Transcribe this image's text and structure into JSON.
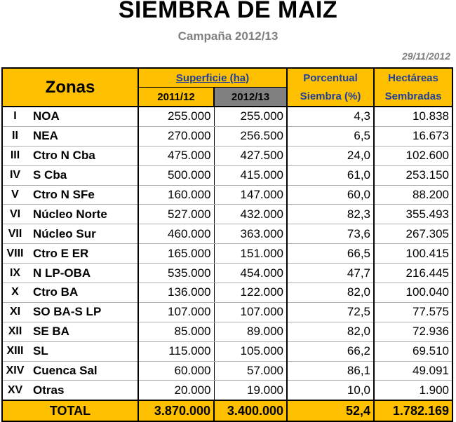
{
  "title": "SIEMBRA DE MAIZ",
  "subtitle": "Campaña 2012/13",
  "date": "29/11/2012",
  "header": {
    "zonas": "Zonas",
    "superficie": "Superficie (ha)",
    "year1": "2011/12",
    "year2": "2012/13",
    "porcentual_l1": "Porcentual",
    "porcentual_l2": "Siembra (%)",
    "hectareas_l1": "Hectáreas",
    "hectareas_l2": "Sembradas"
  },
  "rows": [
    {
      "num": "I",
      "zona": "NOA",
      "sup_2011": "255.000",
      "sup_2012": "255.000",
      "pct": "4,3",
      "ha": "10.838"
    },
    {
      "num": "II",
      "zona": "NEA",
      "sup_2011": "270.000",
      "sup_2012": "256.500",
      "pct": "6,5",
      "ha": "16.673"
    },
    {
      "num": "III",
      "zona": "Ctro N Cba",
      "sup_2011": "475.000",
      "sup_2012": "427.500",
      "pct": "24,0",
      "ha": "102.600"
    },
    {
      "num": "IV",
      "zona": "S Cba",
      "sup_2011": "500.000",
      "sup_2012": "415.000",
      "pct": "61,0",
      "ha": "253.150"
    },
    {
      "num": "V",
      "zona": "Ctro N SFe",
      "sup_2011": "160.000",
      "sup_2012": "147.000",
      "pct": "60,0",
      "ha": "88.200"
    },
    {
      "num": "VI",
      "zona": "Núcleo Norte",
      "sup_2011": "527.000",
      "sup_2012": "432.000",
      "pct": "82,3",
      "ha": "355.493"
    },
    {
      "num": "VII",
      "zona": "Núcleo Sur",
      "sup_2011": "460.000",
      "sup_2012": "363.000",
      "pct": "73,6",
      "ha": "267.305"
    },
    {
      "num": "VIII",
      "zona": "Ctro E ER",
      "sup_2011": "165.000",
      "sup_2012": "151.000",
      "pct": "66,5",
      "ha": "100.415"
    },
    {
      "num": "IX",
      "zona": "N LP-OBA",
      "sup_2011": "535.000",
      "sup_2012": "454.000",
      "pct": "47,7",
      "ha": "216.445"
    },
    {
      "num": "X",
      "zona": "Ctro BA",
      "sup_2011": "136.000",
      "sup_2012": "122.000",
      "pct": "82,0",
      "ha": "100.040"
    },
    {
      "num": "XI",
      "zona": "SO BA-S LP",
      "sup_2011": "107.000",
      "sup_2012": "107.000",
      "pct": "72,5",
      "ha": "77.575"
    },
    {
      "num": "XII",
      "zona": "SE BA",
      "sup_2011": "85.000",
      "sup_2012": "89.000",
      "pct": "82,0",
      "ha": "72.936"
    },
    {
      "num": "XIII",
      "zona": "SL",
      "sup_2011": "115.000",
      "sup_2012": "105.000",
      "pct": "66,2",
      "ha": "69.510"
    },
    {
      "num": "XIV",
      "zona": "Cuenca Sal",
      "sup_2011": "60.000",
      "sup_2012": "57.000",
      "pct": "86,1",
      "ha": "49.091"
    },
    {
      "num": "XV",
      "zona": "Otras",
      "sup_2011": "20.000",
      "sup_2012": "19.000",
      "pct": "10,0",
      "ha": "1.900"
    }
  ],
  "total": {
    "label": "TOTAL",
    "sup_2011": "3.870.000",
    "sup_2012": "3.400.000",
    "pct": "52,4",
    "ha": "1.782.169"
  },
  "colors": {
    "header_bg": "#ffc000",
    "header_blue_text": "#1f3f9f",
    "year2_bg": "#808080",
    "subtitle_gray": "#808080"
  }
}
